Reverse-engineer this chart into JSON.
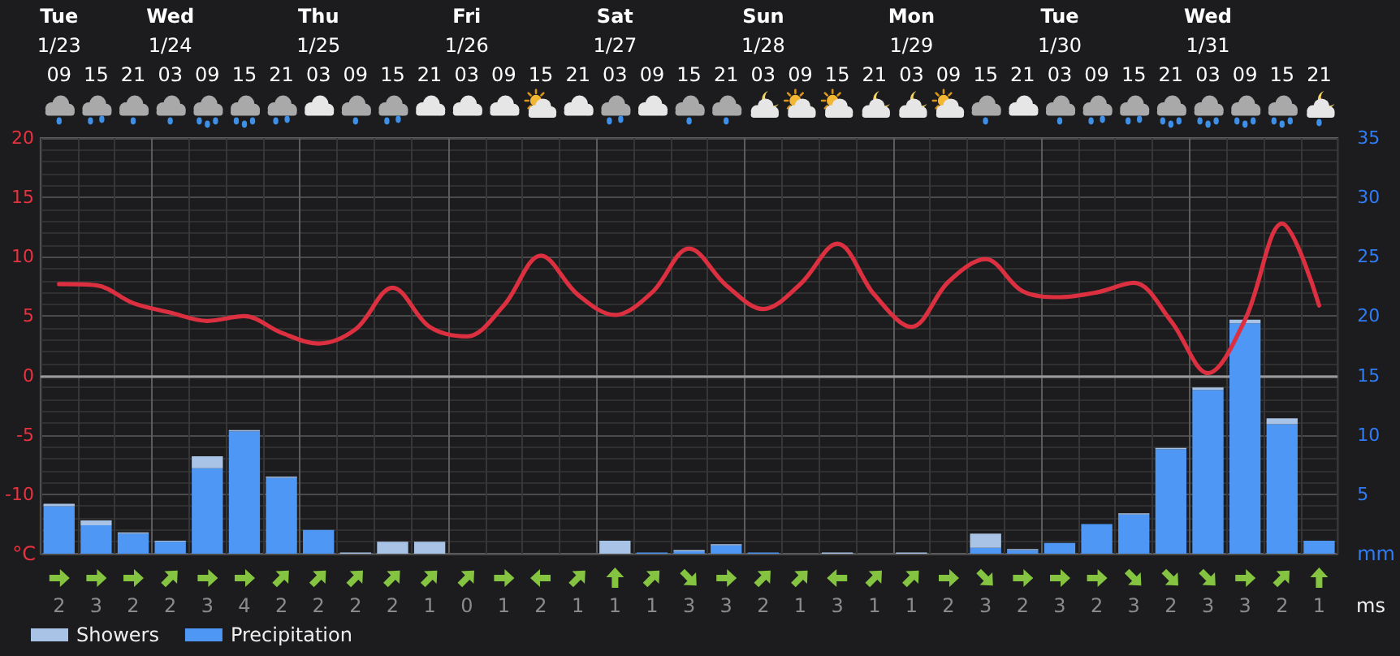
{
  "chart_data": [
    {
      "type": "bar",
      "categories": [
        "Tue\n1/23\n09",
        "15",
        "21",
        "Wed\n1/24\n03",
        "09",
        "15",
        "21",
        "Thu\n1/25\n03",
        "09",
        "15",
        "21",
        "Fri\n1/26\n03",
        "09",
        "15",
        "21",
        "Sat\n1/27\n03",
        "09",
        "15",
        "21",
        "Sun\n1/28\n03",
        "09",
        "15",
        "21",
        "Mon\n1/29\n03",
        "09",
        "15",
        "21",
        "Tue\n1/30\n03",
        "09",
        "15",
        "21",
        "Wed\n1/31\n03",
        "09",
        "15",
        "21"
      ],
      "series": [
        {
          "name": "Precipitation",
          "type": "bar",
          "axis": "y2",
          "color": "#4f97f5",
          "values": [
            4.0,
            2.4,
            1.7,
            1.0,
            7.2,
            10.3,
            6.4,
            2.0,
            0,
            0,
            0,
            0,
            0,
            0,
            0,
            0,
            0.1,
            0.2,
            0.7,
            0.1,
            0,
            0,
            0,
            0,
            0,
            0.5,
            0.3,
            0.9,
            2.5,
            3.3,
            8.8,
            13.8,
            19.4,
            10.9,
            1.1
          ]
        },
        {
          "name": "Showers",
          "type": "bar",
          "axis": "y2",
          "color": "#a9c3e6",
          "values": [
            0.2,
            0.4,
            0.1,
            0.1,
            1.0,
            0.1,
            0.1,
            0,
            0.1,
            1.0,
            1.0,
            0,
            0,
            0,
            0,
            1.1,
            0,
            0.1,
            0.1,
            0,
            0,
            0.1,
            0,
            0.1,
            0,
            1.2,
            0.1,
            0,
            0,
            0.1,
            0.1,
            0.2,
            0.3,
            0.5,
            0
          ]
        },
        {
          "type": "line",
          "color": "#dc3040",
          "values": [
            7.7,
            7.6,
            6.1,
            5.3,
            4.6,
            5.0,
            3.6,
            2.7,
            3.9,
            7.4,
            4.1,
            3.3,
            5.9,
            10.1,
            6.8,
            5.1,
            7.0,
            10.7,
            7.6,
            5.6,
            7.7,
            11.1,
            6.8,
            4.1,
            7.9,
            9.8,
            7.1,
            6.6,
            7.0,
            7.8,
            4.6,
            0.2,
            4.7,
            12.8,
            5.9
          ]
        }
      ],
      "stacked": true,
      "ylabel": "°C",
      "y2label": "mm",
      "ylim": [
        -15,
        20
      ],
      "yticks": [
        -10,
        -5,
        0,
        5,
        10,
        15,
        20
      ],
      "y2lim": [
        0,
        35
      ],
      "y2ticks": [
        5,
        10,
        15,
        20,
        25,
        30,
        35
      ],
      "ref_lines": [
        {
          "axis": "y",
          "value": 0,
          "color": "#9a9a9a"
        }
      ],
      "grid": true,
      "legend": "bottom left"
    },
    {
      "type": "other",
      "ylabel": "ms",
      "data_labels": true,
      "values": [
        2,
        3,
        2,
        2,
        3,
        4,
        2,
        2,
        2,
        2,
        1,
        0,
        1,
        2,
        1,
        1,
        1,
        3,
        3,
        2,
        1,
        3,
        1,
        1,
        2,
        3,
        2,
        3,
        2,
        3,
        2,
        3,
        3,
        2,
        1
      ]
    }
  ]
}
